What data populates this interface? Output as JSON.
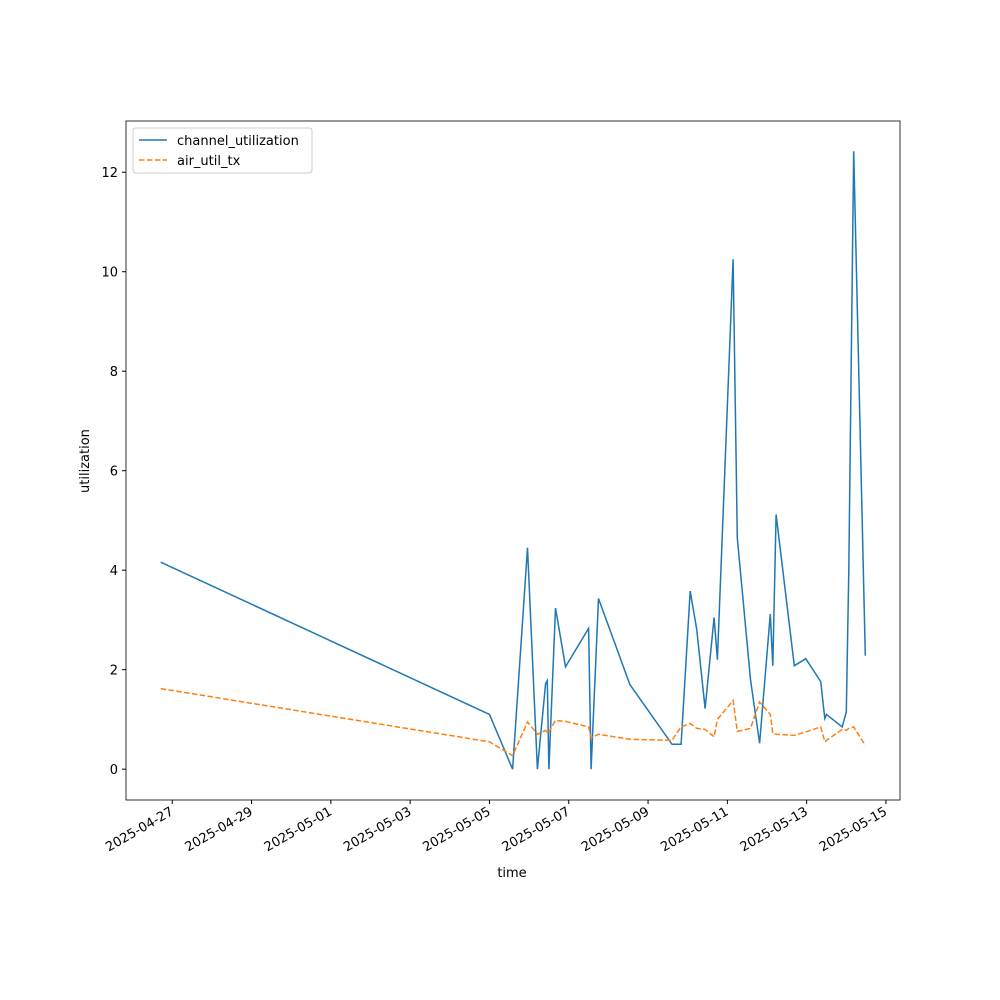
{
  "chart_data": {
    "type": "line",
    "xlabel": "time",
    "ylabel": "utilization",
    "x": [
      "2025-04-26T17:00",
      "2025-05-05T00:00",
      "2025-05-05T14:00",
      "2025-05-05T23:00",
      "2025-05-06T05:00",
      "2025-05-06T10:00",
      "2025-05-06T11:00",
      "2025-05-06T12:00",
      "2025-05-06T16:00",
      "2025-05-06T22:00",
      "2025-05-07T12:00",
      "2025-05-07T13:30",
      "2025-05-07T18:00",
      "2025-05-08T13:00",
      "2025-05-09T14:30",
      "2025-05-09T20:00",
      "2025-05-10T01:30",
      "2025-05-10T05:30",
      "2025-05-10T10:30",
      "2025-05-10T16:00",
      "2025-05-10T18:00",
      "2025-05-11T03:30",
      "2025-05-11T06:00",
      "2025-05-11T14:00",
      "2025-05-11T19:30",
      "2025-05-12T02:00",
      "2025-05-12T03:30",
      "2025-05-12T05:30",
      "2025-05-12T16:30",
      "2025-05-12T23:30",
      "2025-05-13T08:30",
      "2025-05-13T11:00",
      "2025-05-13T12:00",
      "2025-05-13T21:30",
      "2025-05-14T00:00",
      "2025-05-14T01:30",
      "2025-05-14T04:30",
      "2025-05-14T11:30"
    ],
    "series": [
      {
        "name": "channel_utilization",
        "color": "#1f77b4",
        "dash": "solid",
        "values": [
          4.16,
          1.1,
          0.0,
          4.45,
          0.0,
          1.72,
          1.78,
          0.0,
          3.24,
          2.06,
          2.83,
          0.0,
          3.43,
          1.7,
          0.5,
          0.5,
          3.58,
          2.8,
          1.22,
          3.05,
          2.2,
          10.25,
          4.65,
          1.8,
          0.52,
          3.12,
          2.08,
          5.12,
          2.08,
          2.22,
          1.76,
          1.02,
          1.1,
          0.85,
          1.15,
          4.0,
          12.42,
          2.28
        ]
      },
      {
        "name": "air_util_tx",
        "color": "#ff7f0e",
        "dash": "dashed",
        "values": [
          1.62,
          0.55,
          0.27,
          0.95,
          0.7,
          0.78,
          0.72,
          0.75,
          0.98,
          0.96,
          0.85,
          0.63,
          0.7,
          0.6,
          0.58,
          0.85,
          0.92,
          0.82,
          0.8,
          0.65,
          1.0,
          1.38,
          0.76,
          0.82,
          1.35,
          1.1,
          0.72,
          0.7,
          0.68,
          0.75,
          0.85,
          0.55,
          0.58,
          0.8,
          0.78,
          0.82,
          0.85,
          0.48
        ]
      }
    ],
    "xlim": [
      "2025-04-25T20:00",
      "2025-05-15T08:30"
    ],
    "xticks": [
      "2025-04-27",
      "2025-04-29",
      "2025-05-01",
      "2025-05-03",
      "2025-05-05",
      "2025-05-07",
      "2025-05-09",
      "2025-05-11",
      "2025-05-13",
      "2025-05-15"
    ],
    "ylim": [
      -0.62,
      13.03
    ],
    "yticks": [
      0,
      2,
      4,
      6,
      8,
      10,
      12
    ],
    "legend": "upper left"
  }
}
